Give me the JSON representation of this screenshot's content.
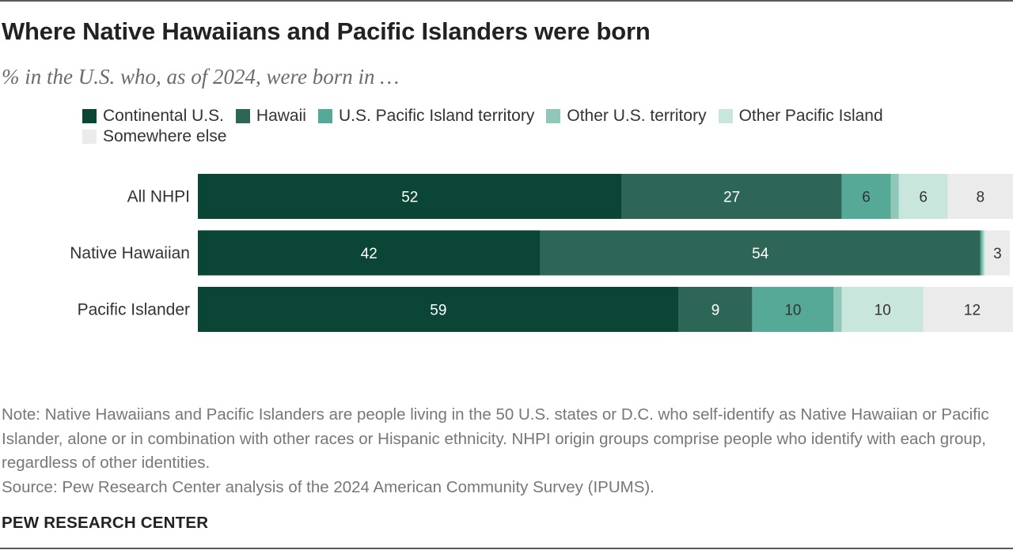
{
  "title": "Where Native Hawaiians and Pacific Islanders were born",
  "subtitle": "% in the U.S. who, as of 2024, were born in …",
  "note": "Note: Native Hawaiians and Pacific Islanders are people living in the 50 U.S. states or D.C. who self-identify as Native Hawaiian or Pacific Islander, alone or in combination with other races or Hispanic ethnicity. NHPI origin groups comprise people who identify with each group, regardless of other identities.",
  "source": "Source: Pew Research Center analysis of the 2024 American Community Survey (IPUMS).",
  "brand": "PEW RESEARCH CENTER",
  "chart_data": {
    "type": "bar",
    "orientation": "horizontal",
    "stacked": true,
    "categories": [
      "All NHPI",
      "Native Hawaiian",
      "Pacific Islander"
    ],
    "series": [
      {
        "name": "Continental U.S.",
        "color": "#0a4536",
        "values": [
          52,
          42,
          59
        ],
        "labels": [
          "52",
          "42",
          "59"
        ]
      },
      {
        "name": "Hawaii",
        "color": "#2d6556",
        "values": [
          27,
          54,
          9
        ],
        "labels": [
          "27",
          "54",
          "9"
        ]
      },
      {
        "name": "U.S. Pacific Island territory",
        "color": "#56a897",
        "values": [
          6,
          0.2,
          10
        ],
        "labels": [
          "6",
          "",
          "10"
        ]
      },
      {
        "name": "Other U.S. territory",
        "color": "#8fc7b8",
        "values": [
          1,
          0.2,
          1
        ],
        "labels": [
          "",
          "",
          ""
        ]
      },
      {
        "name": "Other Pacific Island",
        "color": "#c9e6dd",
        "values": [
          6,
          0.2,
          10
        ],
        "labels": [
          "6",
          "",
          "10"
        ]
      },
      {
        "name": "Somewhere else",
        "color": "#ebebeb",
        "values": [
          8,
          3,
          12
        ],
        "labels": [
          "8",
          "3",
          "12"
        ]
      }
    ],
    "xlim": [
      0,
      100
    ],
    "grid": false,
    "legend_position": "top-left"
  }
}
